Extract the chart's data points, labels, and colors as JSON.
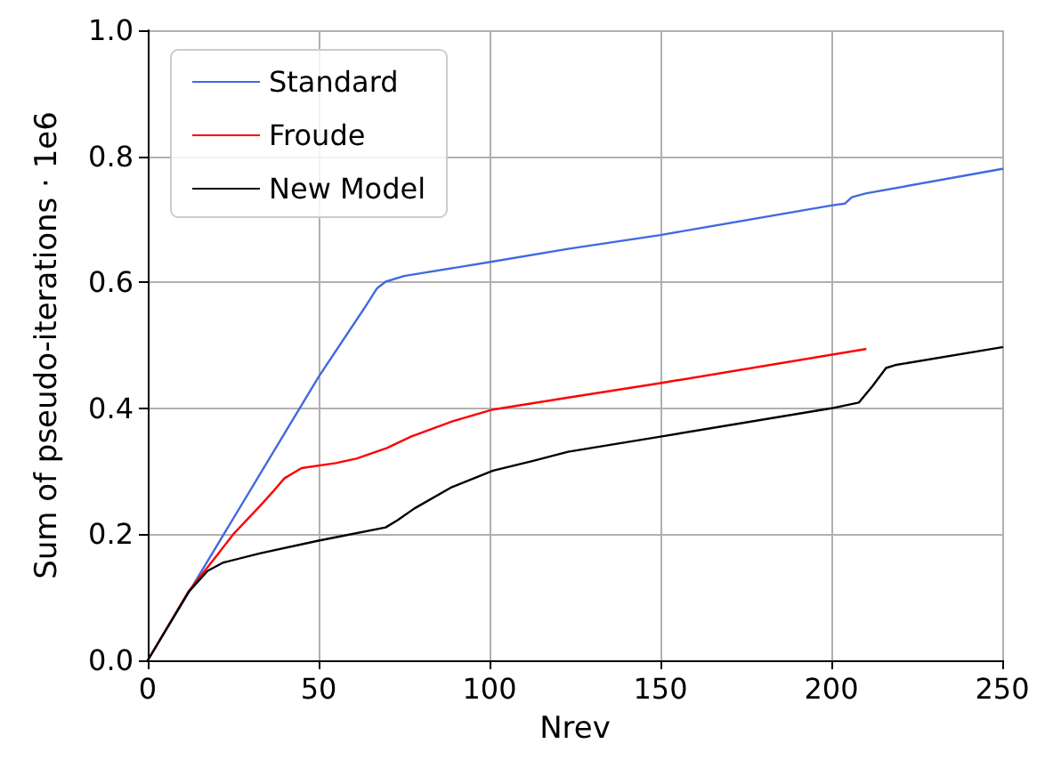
{
  "chart_data": {
    "type": "line",
    "xlabel": "Nrev",
    "ylabel": "Sum of pseudo-iterations · 1e6",
    "xlim": [
      0,
      250
    ],
    "xticks": [
      0,
      50,
      100,
      150,
      200,
      250
    ],
    "ylim": [
      0,
      1.0
    ],
    "yticks": [
      {
        "value": 0,
        "label": "0.0"
      },
      {
        "value": 0.2,
        "label": "0.2"
      },
      {
        "value": 0.4,
        "label": "0.4"
      },
      {
        "value": 0.6,
        "label": "0.6"
      },
      {
        "value": 0.8,
        "label": "0.8"
      },
      {
        "value": 1.0,
        "label": "1.0"
      }
    ],
    "grid": true,
    "legend": "top left",
    "marker": "none",
    "line_style": "solid",
    "series": [
      {
        "name": "Standard",
        "color": "#4169e1",
        "x": [
          0,
          20,
          50,
          63.5,
          67,
          69.6,
          75,
          100,
          123,
          150,
          200,
          204,
          206,
          210,
          250
        ],
        "values": [
          0,
          0.18,
          0.45,
          0.56,
          0.59,
          0.601,
          0.61,
          0.632,
          0.653,
          0.675,
          0.722,
          0.725,
          0.735,
          0.741,
          0.78
        ]
      },
      {
        "name": "Froude",
        "color": "#ff0000",
        "x": [
          0,
          12,
          20,
          25,
          33,
          37,
          40,
          45,
          55,
          61,
          70,
          77,
          89,
          101,
          123,
          150,
          210
        ],
        "values": [
          0,
          0.11,
          0.165,
          0.2,
          0.246,
          0.27,
          0.289,
          0.305,
          0.313,
          0.32,
          0.337,
          0.355,
          0.379,
          0.398,
          0.417,
          0.44,
          0.494
        ]
      },
      {
        "name": "New Model",
        "color": "#000000",
        "x": [
          0,
          12,
          17.5,
          22,
          33,
          50,
          69.6,
          73,
          78,
          89,
          101,
          113,
          123,
          150,
          200,
          208,
          212,
          216,
          219,
          250
        ],
        "values": [
          0,
          0.109,
          0.142,
          0.155,
          0.17,
          0.19,
          0.211,
          0.222,
          0.241,
          0.275,
          0.301,
          0.317,
          0.331,
          0.355,
          0.4,
          0.409,
          0.435,
          0.464,
          0.469,
          0.497
        ]
      }
    ]
  }
}
